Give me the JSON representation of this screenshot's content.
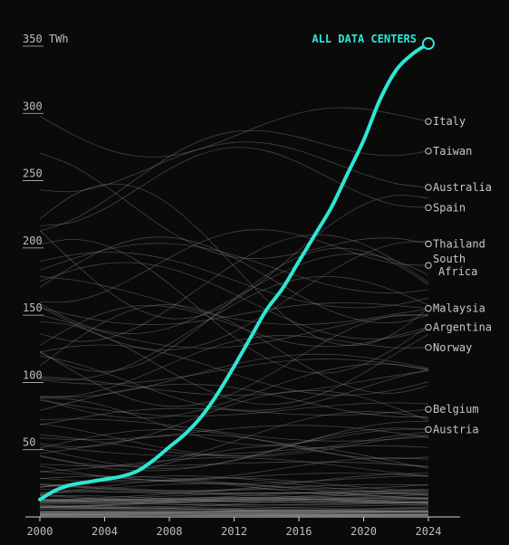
{
  "chart_data": {
    "type": "line",
    "y_unit": "TWh",
    "xlim": [
      2000,
      2024
    ],
    "ylim": [
      0,
      350
    ],
    "x_ticks": [
      2000,
      2004,
      2008,
      2012,
      2016,
      2020,
      2024
    ],
    "y_ticks": [
      50,
      100,
      150,
      200,
      250,
      300,
      350
    ],
    "grid": false,
    "colors": {
      "background": "#0a0a0a",
      "highlight": "#2ee6d6",
      "country_lines": "#8a8a8a"
    },
    "highlight_series": {
      "name": "ALL DATA CENTERS",
      "x": [
        2000,
        2001,
        2002,
        2003,
        2004,
        2005,
        2006,
        2007,
        2008,
        2009,
        2010,
        2011,
        2012,
        2013,
        2014,
        2015,
        2016,
        2017,
        2018,
        2019,
        2020,
        2021,
        2022,
        2023,
        2024
      ],
      "values": [
        13,
        20,
        24,
        26,
        28,
        30,
        34,
        42,
        52,
        62,
        75,
        92,
        112,
        133,
        154,
        170,
        190,
        210,
        230,
        255,
        280,
        310,
        332,
        344,
        352
      ]
    },
    "labeled_series": [
      {
        "name": "Italy",
        "end_value": 294
      },
      {
        "name": "Taiwan",
        "end_value": 272
      },
      {
        "name": "Australia",
        "end_value": 245
      },
      {
        "name": "Spain",
        "end_value": 230
      },
      {
        "name": "Thailand",
        "end_value": 203
      },
      {
        "name": "South Africa",
        "end_value": 187
      },
      {
        "name": "Malaysia",
        "end_value": 155
      },
      {
        "name": "Argentina",
        "end_value": 141
      },
      {
        "name": "Norway",
        "end_value": 126
      },
      {
        "name": "Belgium",
        "end_value": 80
      },
      {
        "name": "Austria",
        "end_value": 65
      }
    ]
  }
}
